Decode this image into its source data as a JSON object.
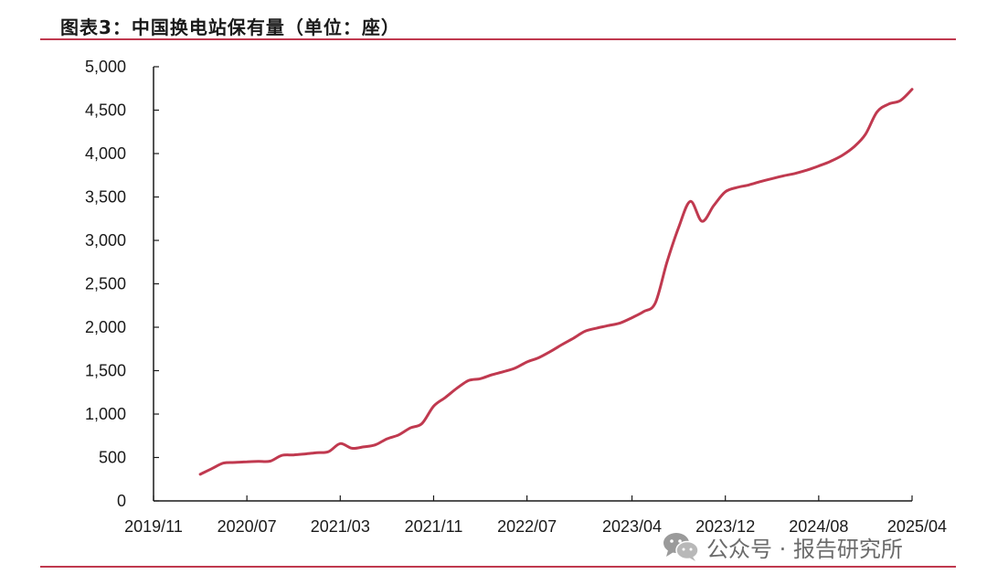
{
  "header": {
    "title": "图表3：中国换电站保有量（单位：座）"
  },
  "watermark": {
    "text": "公众号 · 报告研究所",
    "icon": "wechat-icon"
  },
  "chart_data": {
    "type": "line",
    "title": "",
    "xlabel": "",
    "ylabel": "",
    "ylim": [
      0,
      5000
    ],
    "y_ticks": [
      0,
      500,
      1000,
      1500,
      2000,
      2500,
      3000,
      3500,
      4000,
      4500,
      5000
    ],
    "y_tick_labels": [
      "0",
      "500",
      "1,000",
      "1,500",
      "2,000",
      "2,500",
      "3,000",
      "3,500",
      "4,000",
      "4,500",
      "5,000"
    ],
    "x_tick_labels": [
      "2019/11",
      "2020/07",
      "2021/03",
      "2021/11",
      "2022/07",
      "2023/04",
      "2023/12",
      "2024/08",
      "2025/04"
    ],
    "grid": false,
    "line_color": "#c0394f",
    "series": [
      {
        "x": [
          "2020/03",
          "2020/04",
          "2020/05",
          "2020/06",
          "2020/07",
          "2020/08",
          "2020/09",
          "2020/10",
          "2020/11",
          "2020/12",
          "2021/01",
          "2021/02",
          "2021/03",
          "2021/04",
          "2021/05",
          "2021/06",
          "2021/07",
          "2021/08",
          "2021/09",
          "2021/10",
          "2021/11",
          "2021/12",
          "2022/01",
          "2022/02",
          "2022/03",
          "2022/04",
          "2022/05",
          "2022/06",
          "2022/07",
          "2022/08",
          "2022/09",
          "2022/10",
          "2022/11",
          "2022/12",
          "2023/01",
          "2023/02",
          "2023/03",
          "2023/04",
          "2023/05",
          "2023/06",
          "2023/07",
          "2023/08",
          "2023/09",
          "2023/10",
          "2023/11",
          "2023/12",
          "2024/01",
          "2024/02",
          "2024/03",
          "2024/04",
          "2024/05",
          "2024/06",
          "2024/07",
          "2024/08",
          "2024/09",
          "2024/10",
          "2024/11",
          "2024/12",
          "2025/01",
          "2025/02",
          "2025/03",
          "2025/04"
        ],
        "values": [
          306,
          372,
          436,
          443,
          451,
          455,
          458,
          524,
          529,
          541,
          556,
          567,
          660,
          606,
          622,
          645,
          715,
          760,
          840,
          890,
          1090,
          1190,
          1298,
          1386,
          1407,
          1453,
          1488,
          1530,
          1600,
          1648,
          1720,
          1800,
          1875,
          1955,
          1990,
          2020,
          2050,
          2110,
          2180,
          2280,
          2750,
          3150,
          3450,
          3220,
          3400,
          3560,
          3610,
          3638,
          3677,
          3712,
          3744,
          3772,
          3810,
          3857,
          3910,
          3978,
          4075,
          4220,
          4480,
          4570,
          4610,
          4740
        ]
      }
    ]
  }
}
